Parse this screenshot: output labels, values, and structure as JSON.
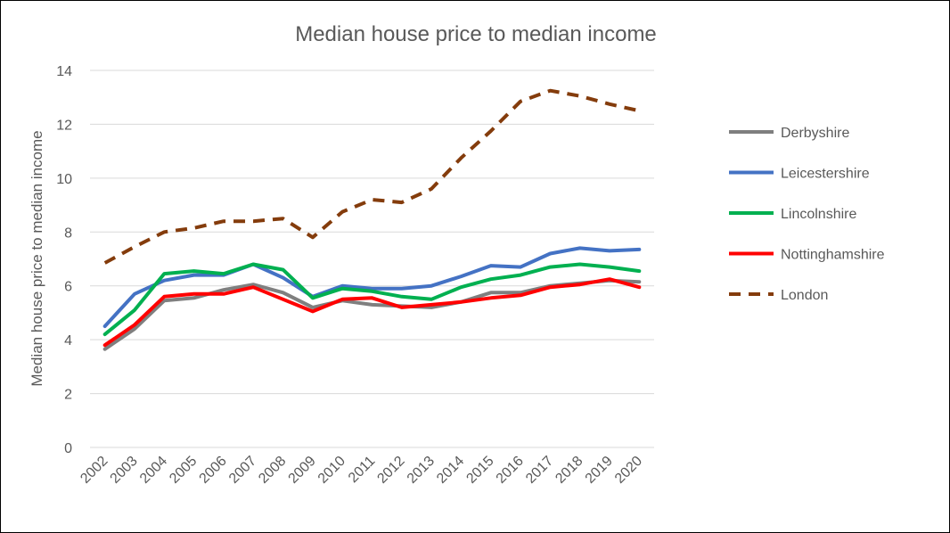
{
  "chart_data": {
    "type": "line",
    "title": "Median house price to median income",
    "xlabel": "",
    "ylabel": "Median house price to median income",
    "categories": [
      "2002",
      "2003",
      "2004",
      "2005",
      "2006",
      "2007",
      "2008",
      "2009",
      "2010",
      "2011",
      "2012",
      "2013",
      "2014",
      "2015",
      "2016",
      "2017",
      "2018",
      "2019",
      "2020"
    ],
    "ylim": [
      0,
      14
    ],
    "yticks": [
      0,
      2,
      4,
      6,
      8,
      10,
      12,
      14
    ],
    "grid": true,
    "legend_position": "right",
    "series": [
      {
        "name": "Derbyshire",
        "color": "#7f7f7f",
        "dash": "solid",
        "values": [
          3.65,
          4.4,
          5.45,
          5.55,
          5.85,
          6.05,
          5.75,
          5.2,
          5.45,
          5.3,
          5.25,
          5.2,
          5.4,
          5.75,
          5.75,
          6.0,
          6.1,
          6.2,
          6.15
        ]
      },
      {
        "name": "Leicestershire",
        "color": "#4472c4",
        "dash": "solid",
        "values": [
          4.5,
          5.7,
          6.2,
          6.4,
          6.4,
          6.8,
          6.3,
          5.6,
          6.0,
          5.9,
          5.9,
          6.0,
          6.35,
          6.75,
          6.7,
          7.2,
          7.4,
          7.3,
          7.35
        ]
      },
      {
        "name": "Lincolnshire",
        "color": "#00b050",
        "dash": "solid",
        "values": [
          4.2,
          5.1,
          6.45,
          6.55,
          6.45,
          6.8,
          6.6,
          5.55,
          5.9,
          5.8,
          5.6,
          5.5,
          5.95,
          6.25,
          6.4,
          6.7,
          6.8,
          6.7,
          6.55
        ]
      },
      {
        "name": "Nottinghamshire",
        "color": "#ff0000",
        "dash": "solid",
        "values": [
          3.8,
          4.55,
          5.6,
          5.7,
          5.7,
          5.95,
          5.5,
          5.05,
          5.5,
          5.55,
          5.2,
          5.3,
          5.4,
          5.55,
          5.65,
          5.95,
          6.05,
          6.25,
          5.95
        ]
      },
      {
        "name": "London",
        "color": "#843c0c",
        "dash": "dashed",
        "values": [
          6.85,
          7.45,
          8.0,
          8.15,
          8.4,
          8.4,
          8.5,
          7.8,
          8.75,
          9.2,
          9.1,
          9.6,
          10.75,
          11.75,
          12.85,
          13.25,
          13.05,
          12.75,
          12.5
        ]
      }
    ]
  }
}
